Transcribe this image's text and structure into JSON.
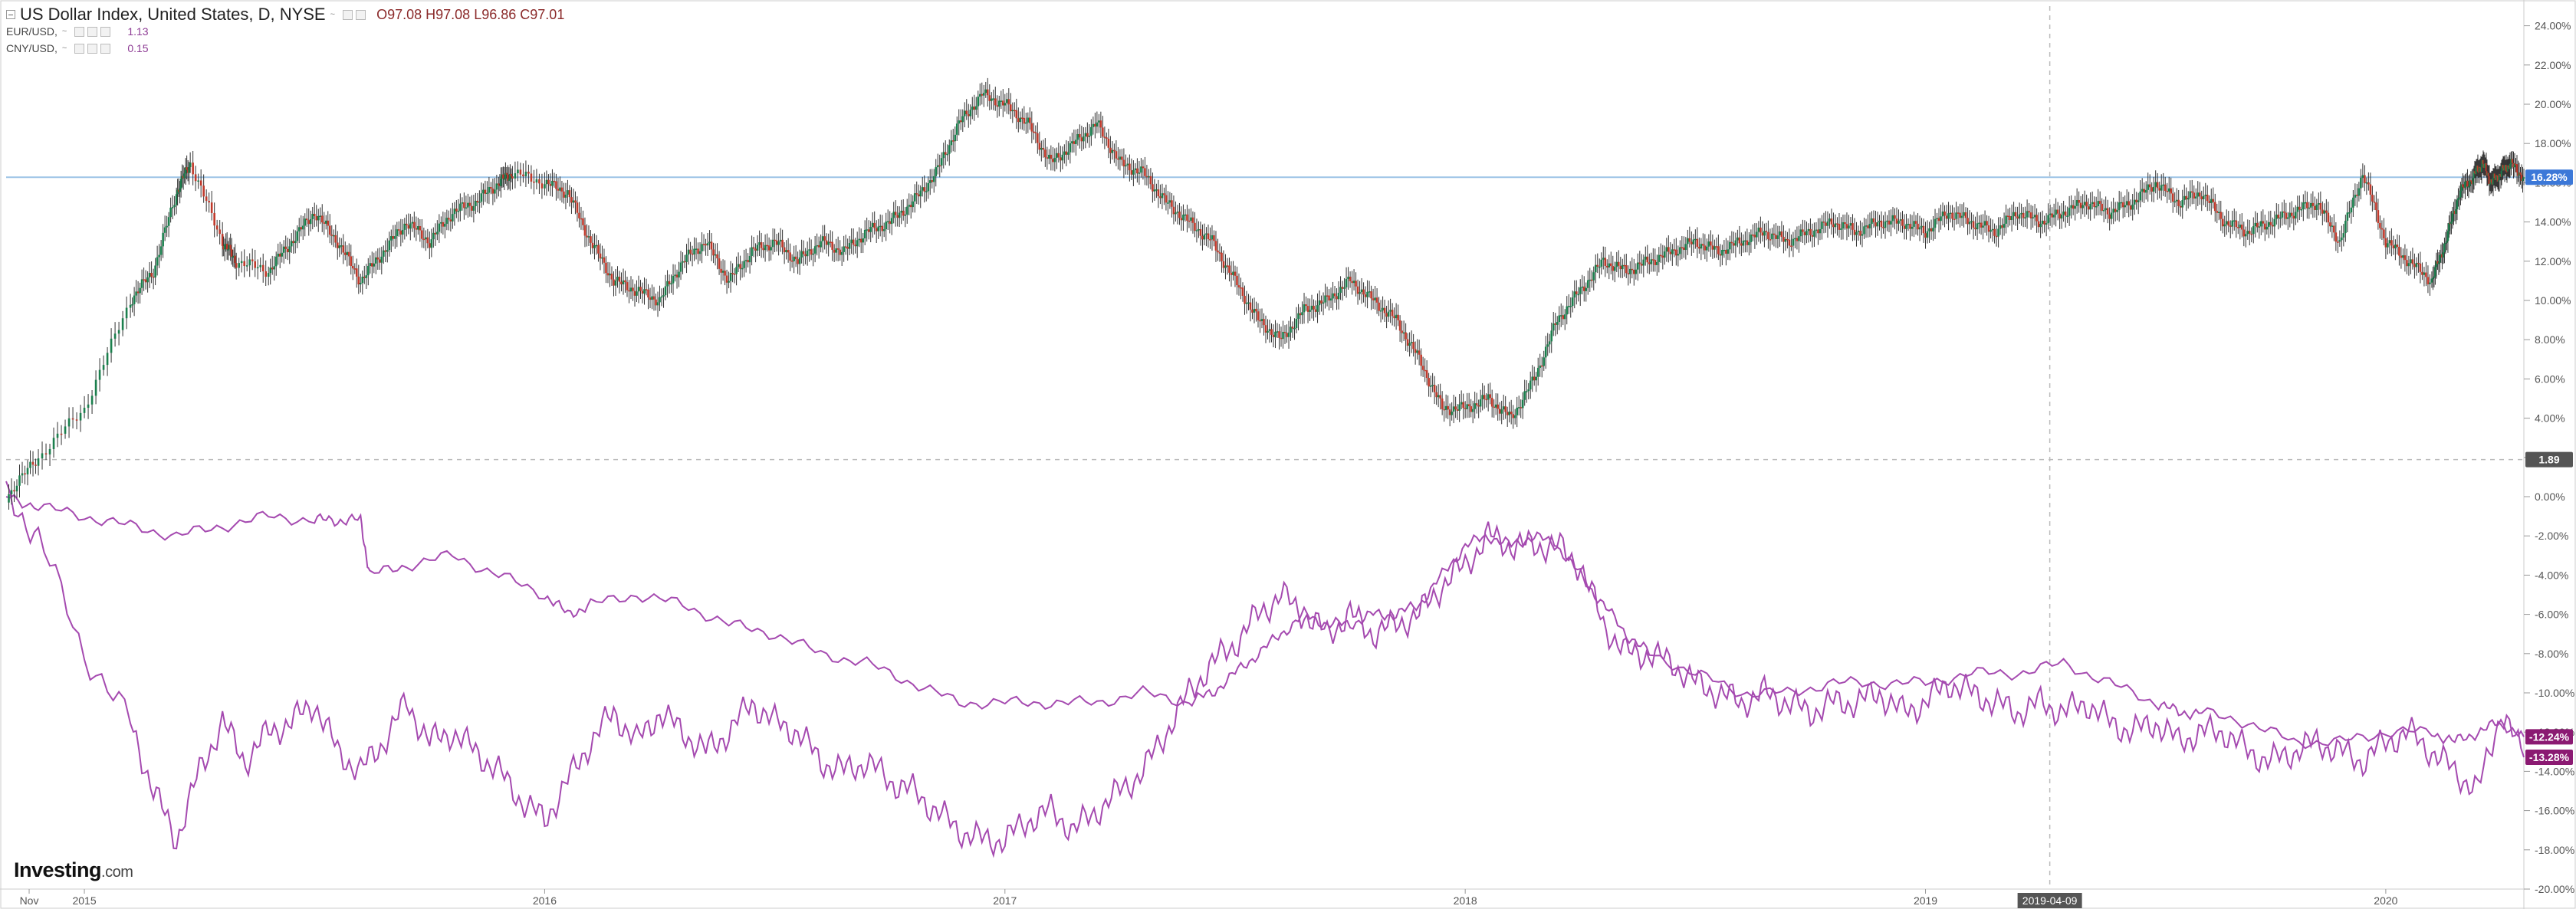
{
  "legend": {
    "main": {
      "title": "US Dollar Index, United States, D, NYSE",
      "o_label": "O",
      "o": "97.08",
      "h_label": "H",
      "h": "97.08",
      "l_label": "L",
      "l": "96.86",
      "c_label": "C",
      "c": "97.01"
    },
    "series1": {
      "name": "EUR/USD,",
      "value": "1.13"
    },
    "series2": {
      "name": "CNY/USD,",
      "value": "0.15"
    },
    "caret": "~"
  },
  "logo": {
    "main": "Investing",
    "suffix": ".com"
  },
  "colors": {
    "up": "#1b7f4d",
    "down": "#c0392b",
    "purple": "#a54ab0",
    "hline": "#9cc3e6",
    "badge_blue": "#3c78d8",
    "badge_dark": "#555555",
    "badge_purple": "#8b1a72",
    "crosshair": "#bbbbbb",
    "axis_text": "#555555"
  },
  "chart_data": {
    "type": "line",
    "subtype": "percent-comparison",
    "y_unit": "%",
    "ylim": [
      -20,
      25
    ],
    "y_ticks": [
      "24.00%",
      "22.00%",
      "20.00%",
      "18.00%",
      "16.00%",
      "14.00%",
      "12.00%",
      "10.00%",
      "8.00%",
      "6.00%",
      "4.00%",
      "2.00%",
      "0.00%",
      "-2.00%",
      "-4.00%",
      "-6.00%",
      "-8.00%",
      "-10.00%",
      "-12.00%",
      "-14.00%",
      "-16.00%",
      "-18.00%",
      "-20.00%"
    ],
    "x_start": 2014.83,
    "x_end": 2020.3,
    "x_ticks": [
      {
        "label": "Nov",
        "x": 2014.88
      },
      {
        "label": "2015",
        "x": 2015.0
      },
      {
        "label": "2016",
        "x": 2016.0
      },
      {
        "label": "2017",
        "x": 2017.0
      },
      {
        "label": "2018",
        "x": 2018.0
      },
      {
        "label": "2019",
        "x": 2019.0
      },
      {
        "label": "2020",
        "x": 2020.0
      }
    ],
    "series": [
      {
        "name": "US Dollar Index",
        "style": "candlestick",
        "x": [
          2014.83,
          2014.9,
          2015.0,
          2015.1,
          2015.15,
          2015.2,
          2015.23,
          2015.3,
          2015.33,
          2015.4,
          2015.45,
          2015.5,
          2015.55,
          2015.6,
          2015.65,
          2015.7,
          2015.75,
          2015.8,
          2015.85,
          2015.9,
          2015.93,
          2016.0,
          2016.05,
          2016.1,
          2016.15,
          2016.2,
          2016.25,
          2016.3,
          2016.35,
          2016.4,
          2016.45,
          2016.5,
          2016.55,
          2016.6,
          2016.65,
          2016.7,
          2016.75,
          2016.8,
          2016.85,
          2016.9,
          2016.95,
          2017.0,
          2017.05,
          2017.1,
          2017.15,
          2017.2,
          2017.25,
          2017.3,
          2017.35,
          2017.4,
          2017.45,
          2017.5,
          2017.55,
          2017.6,
          2017.65,
          2017.7,
          2017.75,
          2017.8,
          2017.85,
          2017.9,
          2017.95,
          2018.0,
          2018.05,
          2018.1,
          2018.15,
          2018.2,
          2018.25,
          2018.3,
          2018.35,
          2018.4,
          2018.45,
          2018.5,
          2018.55,
          2018.6,
          2018.65,
          2018.7,
          2018.75,
          2018.8,
          2018.85,
          2018.9,
          2018.95,
          2019.0,
          2019.05,
          2019.1,
          2019.15,
          2019.2,
          2019.25,
          2019.3,
          2019.35,
          2019.4,
          2019.45,
          2019.5,
          2019.55,
          2019.6,
          2019.65,
          2019.7,
          2019.75,
          2019.8,
          2019.85,
          2019.9,
          2019.95,
          2020.0,
          2020.05,
          2020.1,
          2020.13,
          2020.16,
          2020.19,
          2020.21,
          2020.23,
          2020.25,
          2020.27,
          2020.3
        ],
        "values": [
          0.0,
          2.0,
          4.5,
          10.0,
          11.5,
          15.5,
          17.0,
          13.0,
          12.0,
          11.5,
          13.0,
          14.5,
          13.0,
          11.0,
          12.5,
          14.0,
          13.0,
          14.5,
          15.0,
          16.0,
          16.5,
          16.0,
          15.5,
          13.0,
          11.0,
          10.5,
          10.0,
          12.0,
          13.0,
          11.0,
          12.5,
          13.0,
          12.0,
          13.0,
          12.5,
          13.5,
          14.0,
          15.0,
          16.5,
          19.0,
          20.5,
          20.0,
          19.0,
          17.0,
          18.0,
          19.0,
          17.0,
          16.5,
          15.0,
          14.0,
          13.0,
          11.0,
          9.0,
          8.0,
          9.5,
          10.0,
          11.0,
          10.0,
          9.0,
          7.0,
          4.5,
          4.5,
          5.0,
          4.0,
          6.0,
          9.0,
          10.5,
          12.0,
          11.5,
          12.0,
          12.5,
          13.0,
          12.5,
          13.0,
          13.5,
          13.0,
          13.5,
          14.0,
          13.5,
          14.0,
          14.0,
          13.5,
          14.5,
          14.0,
          13.5,
          14.5,
          14.0,
          14.5,
          15.0,
          14.5,
          15.0,
          16.0,
          15.0,
          15.5,
          14.0,
          13.5,
          14.0,
          14.5,
          15.0,
          13.0,
          16.5,
          13.0,
          12.0,
          11.0,
          13.0,
          15.5,
          16.3,
          17.0,
          16.0,
          16.5,
          17.0,
          16.28
        ]
      },
      {
        "name": "EUR/USD",
        "style": "line",
        "x": [
          2014.83,
          2014.9,
          2015.0,
          2015.1,
          2015.15,
          2015.2,
          2015.25,
          2015.3,
          2015.35,
          2015.4,
          2015.45,
          2015.5,
          2015.55,
          2015.6,
          2015.65,
          2015.7,
          2015.75,
          2015.8,
          2015.85,
          2015.9,
          2015.95,
          2016.0,
          2016.05,
          2016.1,
          2016.15,
          2016.2,
          2016.25,
          2016.3,
          2016.35,
          2016.4,
          2016.45,
          2016.5,
          2016.55,
          2016.6,
          2016.65,
          2016.7,
          2016.75,
          2016.8,
          2016.85,
          2016.9,
          2016.95,
          2017.0,
          2017.05,
          2017.1,
          2017.15,
          2017.2,
          2017.25,
          2017.3,
          2017.35,
          2017.4,
          2017.45,
          2017.5,
          2017.55,
          2017.6,
          2017.65,
          2017.7,
          2017.75,
          2017.8,
          2017.85,
          2017.9,
          2017.95,
          2018.0,
          2018.05,
          2018.1,
          2018.15,
          2018.2,
          2018.25,
          2018.3,
          2018.35,
          2018.4,
          2018.45,
          2018.5,
          2018.55,
          2018.6,
          2018.65,
          2018.7,
          2018.75,
          2018.8,
          2018.85,
          2018.9,
          2018.95,
          2019.0,
          2019.05,
          2019.1,
          2019.15,
          2019.2,
          2019.25,
          2019.3,
          2019.35,
          2019.4,
          2019.45,
          2019.5,
          2019.55,
          2019.6,
          2019.65,
          2019.7,
          2019.75,
          2019.8,
          2019.85,
          2019.9,
          2019.95,
          2020.0,
          2020.05,
          2020.1,
          2020.15,
          2020.2,
          2020.25,
          2020.3
        ],
        "values": [
          0.0,
          -2.0,
          -8.0,
          -11.5,
          -15.0,
          -17.5,
          -14.0,
          -11.5,
          -13.5,
          -12.0,
          -11.5,
          -10.5,
          -13.0,
          -14.0,
          -12.5,
          -10.5,
          -12.5,
          -12.0,
          -13.0,
          -14.0,
          -15.5,
          -16.5,
          -14.5,
          -12.5,
          -11.0,
          -12.5,
          -11.0,
          -12.0,
          -13.0,
          -12.0,
          -10.5,
          -11.5,
          -12.0,
          -13.5,
          -14.0,
          -13.5,
          -14.5,
          -15.0,
          -16.0,
          -17.0,
          -17.5,
          -17.5,
          -16.5,
          -16.0,
          -17.0,
          -16.0,
          -15.0,
          -14.0,
          -12.0,
          -10.0,
          -8.5,
          -7.5,
          -6.0,
          -5.0,
          -6.0,
          -7.0,
          -6.0,
          -7.0,
          -6.5,
          -6.0,
          -4.5,
          -3.5,
          -2.0,
          -2.5,
          -2.5,
          -2.5,
          -3.5,
          -6.5,
          -8.0,
          -8.0,
          -8.5,
          -9.5,
          -10.0,
          -10.5,
          -10.0,
          -10.5,
          -11.0,
          -10.5,
          -10.5,
          -10.0,
          -11.0,
          -10.5,
          -9.5,
          -10.0,
          -10.5,
          -11.0,
          -10.5,
          -11.0,
          -10.5,
          -11.5,
          -12.0,
          -11.5,
          -12.5,
          -12.0,
          -12.0,
          -13.0,
          -13.5,
          -13.0,
          -12.5,
          -13.0,
          -13.5,
          -12.5,
          -12.0,
          -13.0,
          -14.0,
          -15.0,
          -11.0,
          -13.28
        ]
      },
      {
        "name": "CNY/USD",
        "style": "line",
        "x": [
          2014.83,
          2014.9,
          2015.0,
          2015.1,
          2015.2,
          2015.3,
          2015.4,
          2015.5,
          2015.55,
          2015.6,
          2015.62,
          2015.7,
          2015.8,
          2015.9,
          2016.0,
          2016.05,
          2016.1,
          2016.2,
          2016.3,
          2016.4,
          2016.5,
          2016.6,
          2016.7,
          2016.8,
          2016.9,
          2017.0,
          2017.1,
          2017.2,
          2017.3,
          2017.4,
          2017.45,
          2017.5,
          2017.55,
          2017.6,
          2017.65,
          2017.7,
          2017.75,
          2017.8,
          2017.85,
          2017.9,
          2017.95,
          2018.0,
          2018.05,
          2018.1,
          2018.15,
          2018.2,
          2018.25,
          2018.3,
          2018.35,
          2018.4,
          2018.5,
          2018.6,
          2018.7,
          2018.8,
          2018.9,
          2019.0,
          2019.1,
          2019.2,
          2019.3,
          2019.4,
          2019.5,
          2019.55,
          2019.6,
          2019.7,
          2019.8,
          2019.9,
          2020.0,
          2020.1,
          2020.15,
          2020.2,
          2020.25,
          2020.3
        ],
        "values": [
          0.0,
          -0.5,
          -1.0,
          -1.5,
          -2.0,
          -1.5,
          -1.0,
          -1.2,
          -1.2,
          -1.2,
          -4.0,
          -3.5,
          -3.0,
          -4.0,
          -5.0,
          -6.0,
          -5.5,
          -5.0,
          -5.5,
          -6.5,
          -7.0,
          -8.0,
          -8.5,
          -9.5,
          -10.5,
          -10.5,
          -10.5,
          -10.5,
          -10.0,
          -10.5,
          -10.0,
          -9.0,
          -8.0,
          -7.0,
          -6.0,
          -6.5,
          -6.5,
          -6.0,
          -6.0,
          -5.5,
          -4.0,
          -2.5,
          -2.0,
          -2.5,
          -2.0,
          -2.5,
          -4.0,
          -5.5,
          -7.0,
          -8.0,
          -9.0,
          -10.0,
          -10.0,
          -9.5,
          -9.5,
          -9.5,
          -9.0,
          -9.0,
          -8.5,
          -9.5,
          -10.5,
          -11.0,
          -11.0,
          -11.5,
          -12.5,
          -12.5,
          -12.0,
          -12.0,
          -12.5,
          -12.0,
          -11.5,
          -12.24
        ]
      }
    ],
    "horizontal_line": {
      "value": 16.28
    },
    "last_value_labels": [
      {
        "text": "16.28%",
        "value": 16.28,
        "color_key": "badge_blue"
      },
      {
        "text": "1.89",
        "value": 1.89,
        "color_key": "badge_dark"
      },
      {
        "text": "-12.24%",
        "value": -12.24,
        "color_key": "badge_purple"
      },
      {
        "text": "-13.28%",
        "value": -13.28,
        "color_key": "badge_purple"
      }
    ],
    "crosshair": {
      "x": 2019.27,
      "y": 1.89,
      "x_label": "2019-04-09"
    },
    "grid": false,
    "legend_position": "top-left"
  }
}
